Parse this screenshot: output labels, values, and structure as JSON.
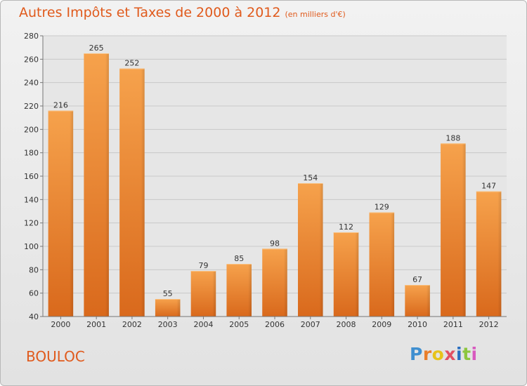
{
  "chart_data": {
    "type": "bar",
    "title": "Autres Impôts et Taxes de 2000 à 2012",
    "subtitle": "(en milliers d'€)",
    "categories": [
      "2000",
      "2001",
      "2002",
      "2003",
      "2004",
      "2005",
      "2006",
      "2007",
      "2008",
      "2009",
      "2010",
      "2011",
      "2012"
    ],
    "values": [
      216,
      265,
      252,
      55,
      79,
      85,
      98,
      154,
      112,
      129,
      67,
      188,
      147
    ],
    "xlabel": "",
    "ylabel": "",
    "ylim": [
      40,
      280
    ],
    "yticks": [
      40,
      60,
      80,
      100,
      120,
      140,
      160,
      180,
      200,
      220,
      240,
      260,
      280
    ],
    "grid": true,
    "bar_color": "#f0913a"
  },
  "footer": {
    "town": "BOULOC",
    "logo_letters": [
      "P",
      "r",
      "o",
      "x",
      "i",
      "t",
      "i"
    ]
  }
}
